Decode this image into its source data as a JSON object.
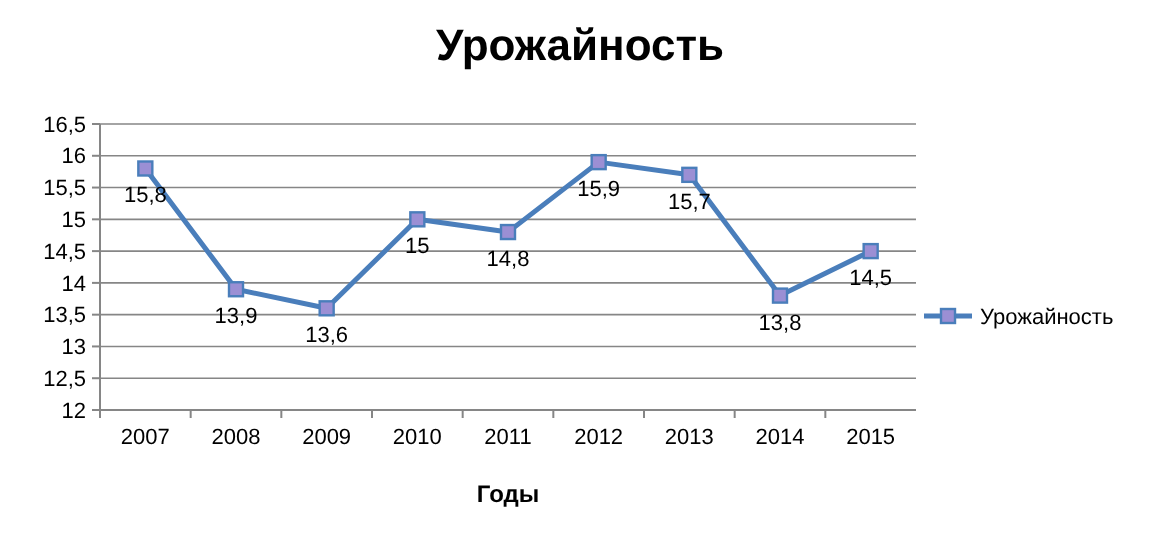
{
  "chart_data": {
    "type": "line",
    "title": "Урожайность",
    "xlabel": "Годы",
    "categories": [
      "2007",
      "2008",
      "2009",
      "2010",
      "2011",
      "2012",
      "2013",
      "2014",
      "2015"
    ],
    "series": [
      {
        "name": "Урожайность",
        "color": "#4a7ebb",
        "values": [
          15.8,
          13.9,
          13.6,
          15,
          14.8,
          15.9,
          15.7,
          13.8,
          14.5
        ],
        "value_labels": [
          "15,8",
          "13,9",
          "13,6",
          "15",
          "14,8",
          "15,9",
          "15,7",
          "13,8",
          "14,5"
        ]
      }
    ],
    "ylim": [
      12,
      16.5
    ],
    "yticks": [
      12,
      {
        "value": 12.5,
        "label": "12,5"
      },
      13,
      {
        "value": 13.5,
        "label": "13,5"
      },
      14,
      {
        "value": 14.5,
        "label": "14,5"
      },
      15,
      {
        "value": 15.5,
        "label": "15,5"
      },
      16,
      {
        "value": 16.5,
        "label": "16,5"
      }
    ],
    "grid": "y",
    "legend": "right",
    "marker": "square",
    "line_style": "solid"
  }
}
